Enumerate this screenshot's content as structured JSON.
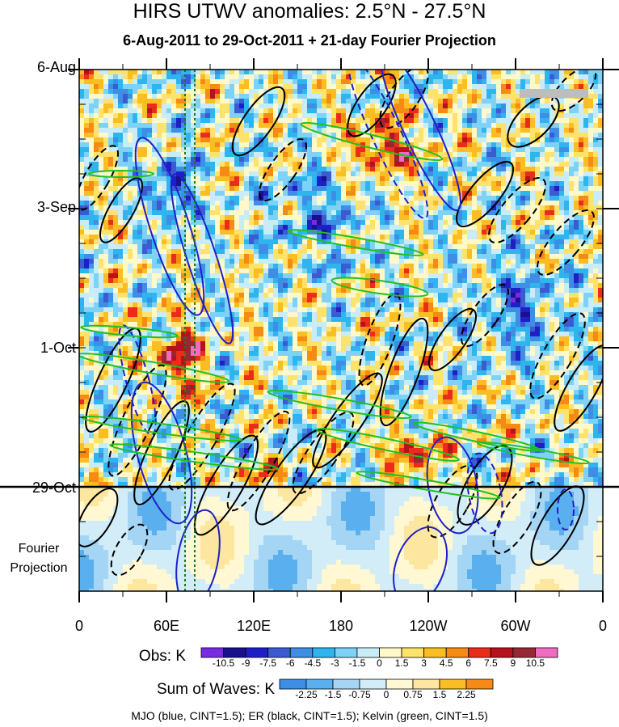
{
  "title": "HIRS UTWV anomalies: 2.5°N - 27.5°N",
  "subtitle": "6-Aug-2011 to 29-Oct-2011 + 21-day Fourier Projection",
  "chart_data": {
    "type": "heatmap",
    "description_x": "longitude",
    "x_ticks": [
      "0",
      "60E",
      "120E",
      "180",
      "120W",
      "60W",
      "0"
    ],
    "x_values": [
      0,
      60,
      120,
      180,
      240,
      300,
      360
    ],
    "xlim": [
      0,
      360
    ],
    "y_ticks": [
      "6-Aug",
      "3-Sep",
      "1-Oct",
      "29-Oct"
    ],
    "y_day_offsets": [
      0,
      28,
      56,
      84
    ],
    "ylim_days": [
      0,
      105
    ],
    "projection_label_1": "Fourier",
    "projection_label_2": "Projection",
    "obs_colorbar": {
      "label": "Obs: K",
      "levels": [
        "-10.5",
        "-9",
        "-7.5",
        "-6",
        "-4.5",
        "-3",
        "-1.5",
        "0",
        "1.5",
        "3",
        "4.5",
        "6",
        "7.5",
        "9",
        "10.5"
      ],
      "colors": [
        "#7a2be2",
        "#1a0f8c",
        "#1f1fc8",
        "#3c5ad2",
        "#3f8ee6",
        "#2eb5ee",
        "#7dd2f5",
        "#c8ecf8",
        "#fff8c8",
        "#fde26b",
        "#fbbd24",
        "#f58a14",
        "#eb2b1c",
        "#b5121d",
        "#962833",
        "#ef6cc0"
      ]
    },
    "sum_colorbar": {
      "label": "Sum of Waves: K",
      "levels": [
        "-2.25",
        "-1.5",
        "-0.75",
        "0",
        "0.75",
        "1.5",
        "2.25"
      ],
      "colors": [
        "#3f8ee6",
        "#5ab0ee",
        "#a5d5f5",
        "#d2ecf8",
        "#fff8d2",
        "#fde7a0",
        "#fbbd24",
        "#f58a14"
      ]
    },
    "footer": "MJO (blue, CINT=1.5); ER (black, CINT=1.5); Kelvin (green, CINT=1.5)",
    "mjo_color": "#1f1fc8",
    "er_color": "#000000",
    "kelvin_color": "#22c022",
    "reference_line_color": "#1a7a1a"
  }
}
